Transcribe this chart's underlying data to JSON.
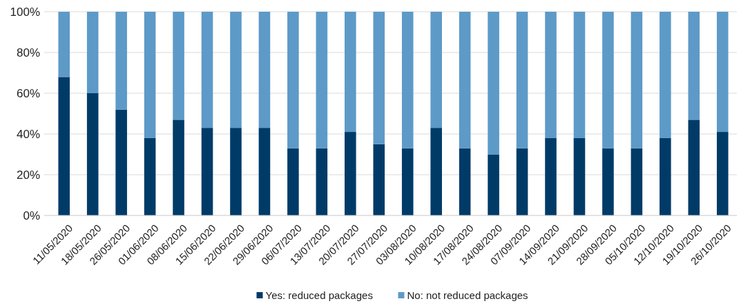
{
  "chart_data": {
    "type": "bar",
    "stacked": true,
    "categories": [
      "11/05/2020",
      "18/05/2020",
      "26/05/2020",
      "01/06/2020",
      "08/06/2020",
      "15/06/2020",
      "22/06/2020",
      "29/06/2020",
      "06/07/2020",
      "13/07/2020",
      "20/07/2020",
      "27/07/2020",
      "03/08/2020",
      "10/08/2020",
      "17/08/2020",
      "24/08/2020",
      "07/09/2020",
      "14/09/2020",
      "21/09/2020",
      "28/09/2020",
      "05/10/2020",
      "12/10/2020",
      "19/10/2020",
      "26/10/2020"
    ],
    "series": [
      {
        "name": "Yes: reduced packages",
        "color": "#003b68",
        "values": [
          68,
          60,
          52,
          38,
          47,
          43,
          43,
          43,
          33,
          33,
          41,
          35,
          33,
          43,
          33,
          30,
          33,
          38,
          38,
          33,
          33,
          38,
          47,
          41
        ]
      },
      {
        "name": "No: not reduced packages",
        "color": "#5d9ac8",
        "values": [
          32,
          40,
          48,
          62,
          53,
          57,
          57,
          57,
          67,
          67,
          59,
          65,
          67,
          57,
          67,
          70,
          67,
          62,
          62,
          67,
          67,
          62,
          53,
          59
        ]
      }
    ],
    "ylim": [
      0,
      100
    ],
    "yticks": [
      {
        "value": 0,
        "label": "0%"
      },
      {
        "value": 20,
        "label": "20%"
      },
      {
        "value": 40,
        "label": "40%"
      },
      {
        "value": 60,
        "label": "60%"
      },
      {
        "value": 80,
        "label": "80%"
      },
      {
        "value": 100,
        "label": "100%"
      }
    ],
    "grid": "y",
    "legend": "bottom"
  }
}
